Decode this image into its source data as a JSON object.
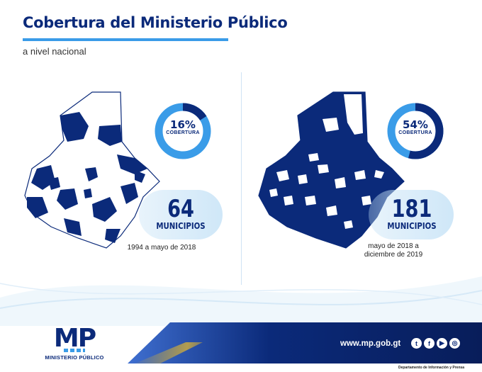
{
  "header": {
    "title": "Cobertura del Ministerio Público",
    "subtitle": "a nivel nacional"
  },
  "left_panel": {
    "percent": "16%",
    "coverage_label": "COBERTURA",
    "coverage_fraction": 0.16,
    "count": "64",
    "count_label": "MUNICIPIOS",
    "period": "1994 a mayo de 2018"
  },
  "right_panel": {
    "percent": "54%",
    "coverage_label": "COBERTURA",
    "coverage_fraction": 0.54,
    "count": "181",
    "count_label": "MUNICIPIOS",
    "period_line1": "mayo de 2018 a",
    "period_line2": "diciembre de 2019"
  },
  "footer": {
    "logo_text": "MP",
    "logo_subtitle": "MINISTERIO PÚBLICO",
    "website": "www.mp.gob.gt",
    "department": "Departamento de Información y Prensa",
    "social_icons": [
      "twitter-icon",
      "facebook-icon",
      "youtube-icon",
      "instagram-icon"
    ]
  },
  "colors": {
    "navy": "#0b2a7a",
    "light_blue": "#3a9ce8",
    "pale_blue": "#cfe7f8",
    "gold": "#d4af37"
  }
}
